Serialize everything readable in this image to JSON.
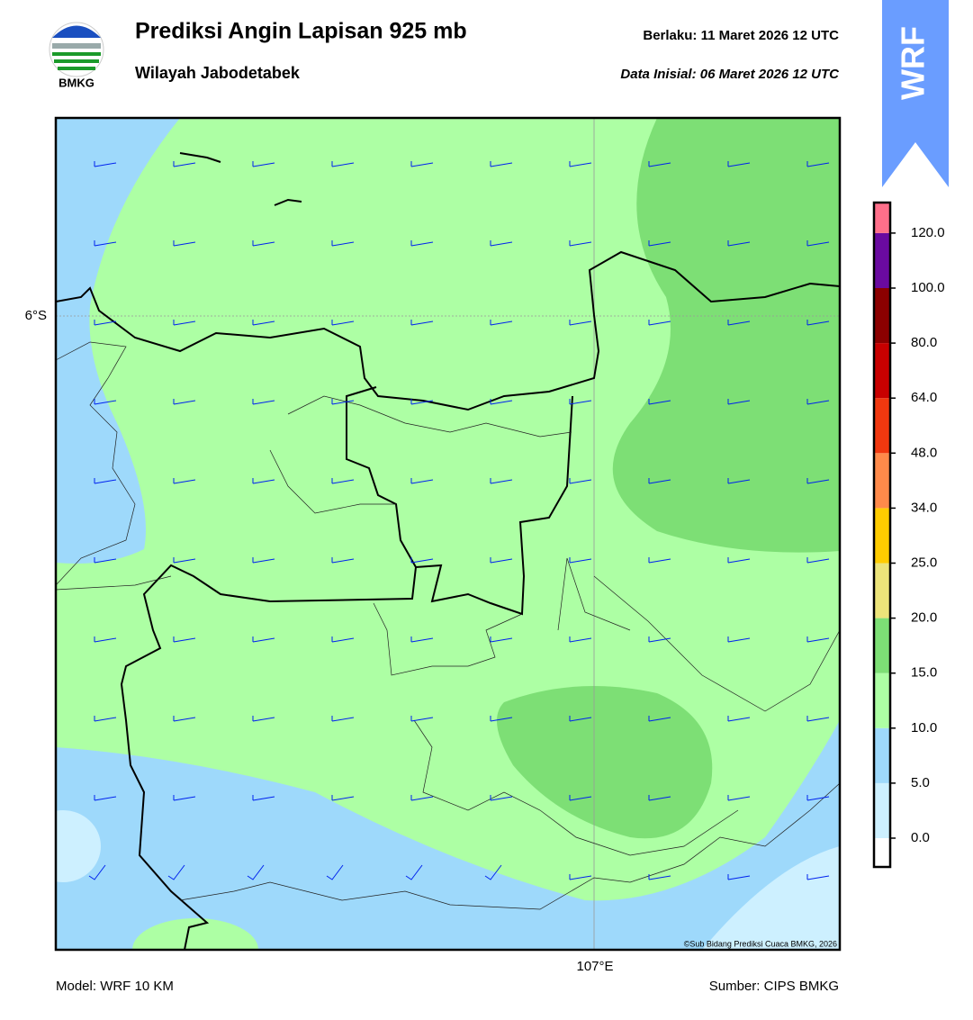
{
  "header": {
    "title": "Prediksi Angin Lapisan 925 mb",
    "subtitle": "Wilayah Jabodetabek",
    "valid_label": "Berlaku:  11 Maret 2026 12 UTC",
    "init_label": "Data Inisial:  06 Maret 2026 12 UTC",
    "logo_text": "BMKG",
    "badge": "WRF"
  },
  "map": {
    "lat_label": "6°S",
    "lon_label": "107°E",
    "copyright": "©Sub Bidang Prediksi Cuaca BMKG, 2026"
  },
  "colorbar": {
    "ticks": [
      {
        "value": 0,
        "label": "0.0"
      },
      {
        "value": 5,
        "label": "5.0"
      },
      {
        "value": 10,
        "label": "10.0"
      },
      {
        "value": 15,
        "label": "15.0"
      },
      {
        "value": 20,
        "label": "20.0"
      },
      {
        "value": 25,
        "label": "25.0"
      },
      {
        "value": 34,
        "label": "34.0"
      },
      {
        "value": 48,
        "label": "48.0"
      },
      {
        "value": 64,
        "label": "64.0"
      },
      {
        "value": 80,
        "label": "80.0"
      },
      {
        "value": 100,
        "label": "100.0"
      },
      {
        "value": 120,
        "label": "120.0"
      }
    ],
    "colors": [
      "#ffffff",
      "#cdf0ff",
      "#9ed9fb",
      "#adffa4",
      "#7ddf75",
      "#ece47a",
      "#ffcc00",
      "#ff8a4a",
      "#f0380f",
      "#c80000",
      "#8b0000",
      "#6a0aa0",
      "#ff6f8a"
    ]
  },
  "footer": {
    "model": "Model: WRF 10 KM",
    "source": "Sumber: CIPS BMKG"
  }
}
